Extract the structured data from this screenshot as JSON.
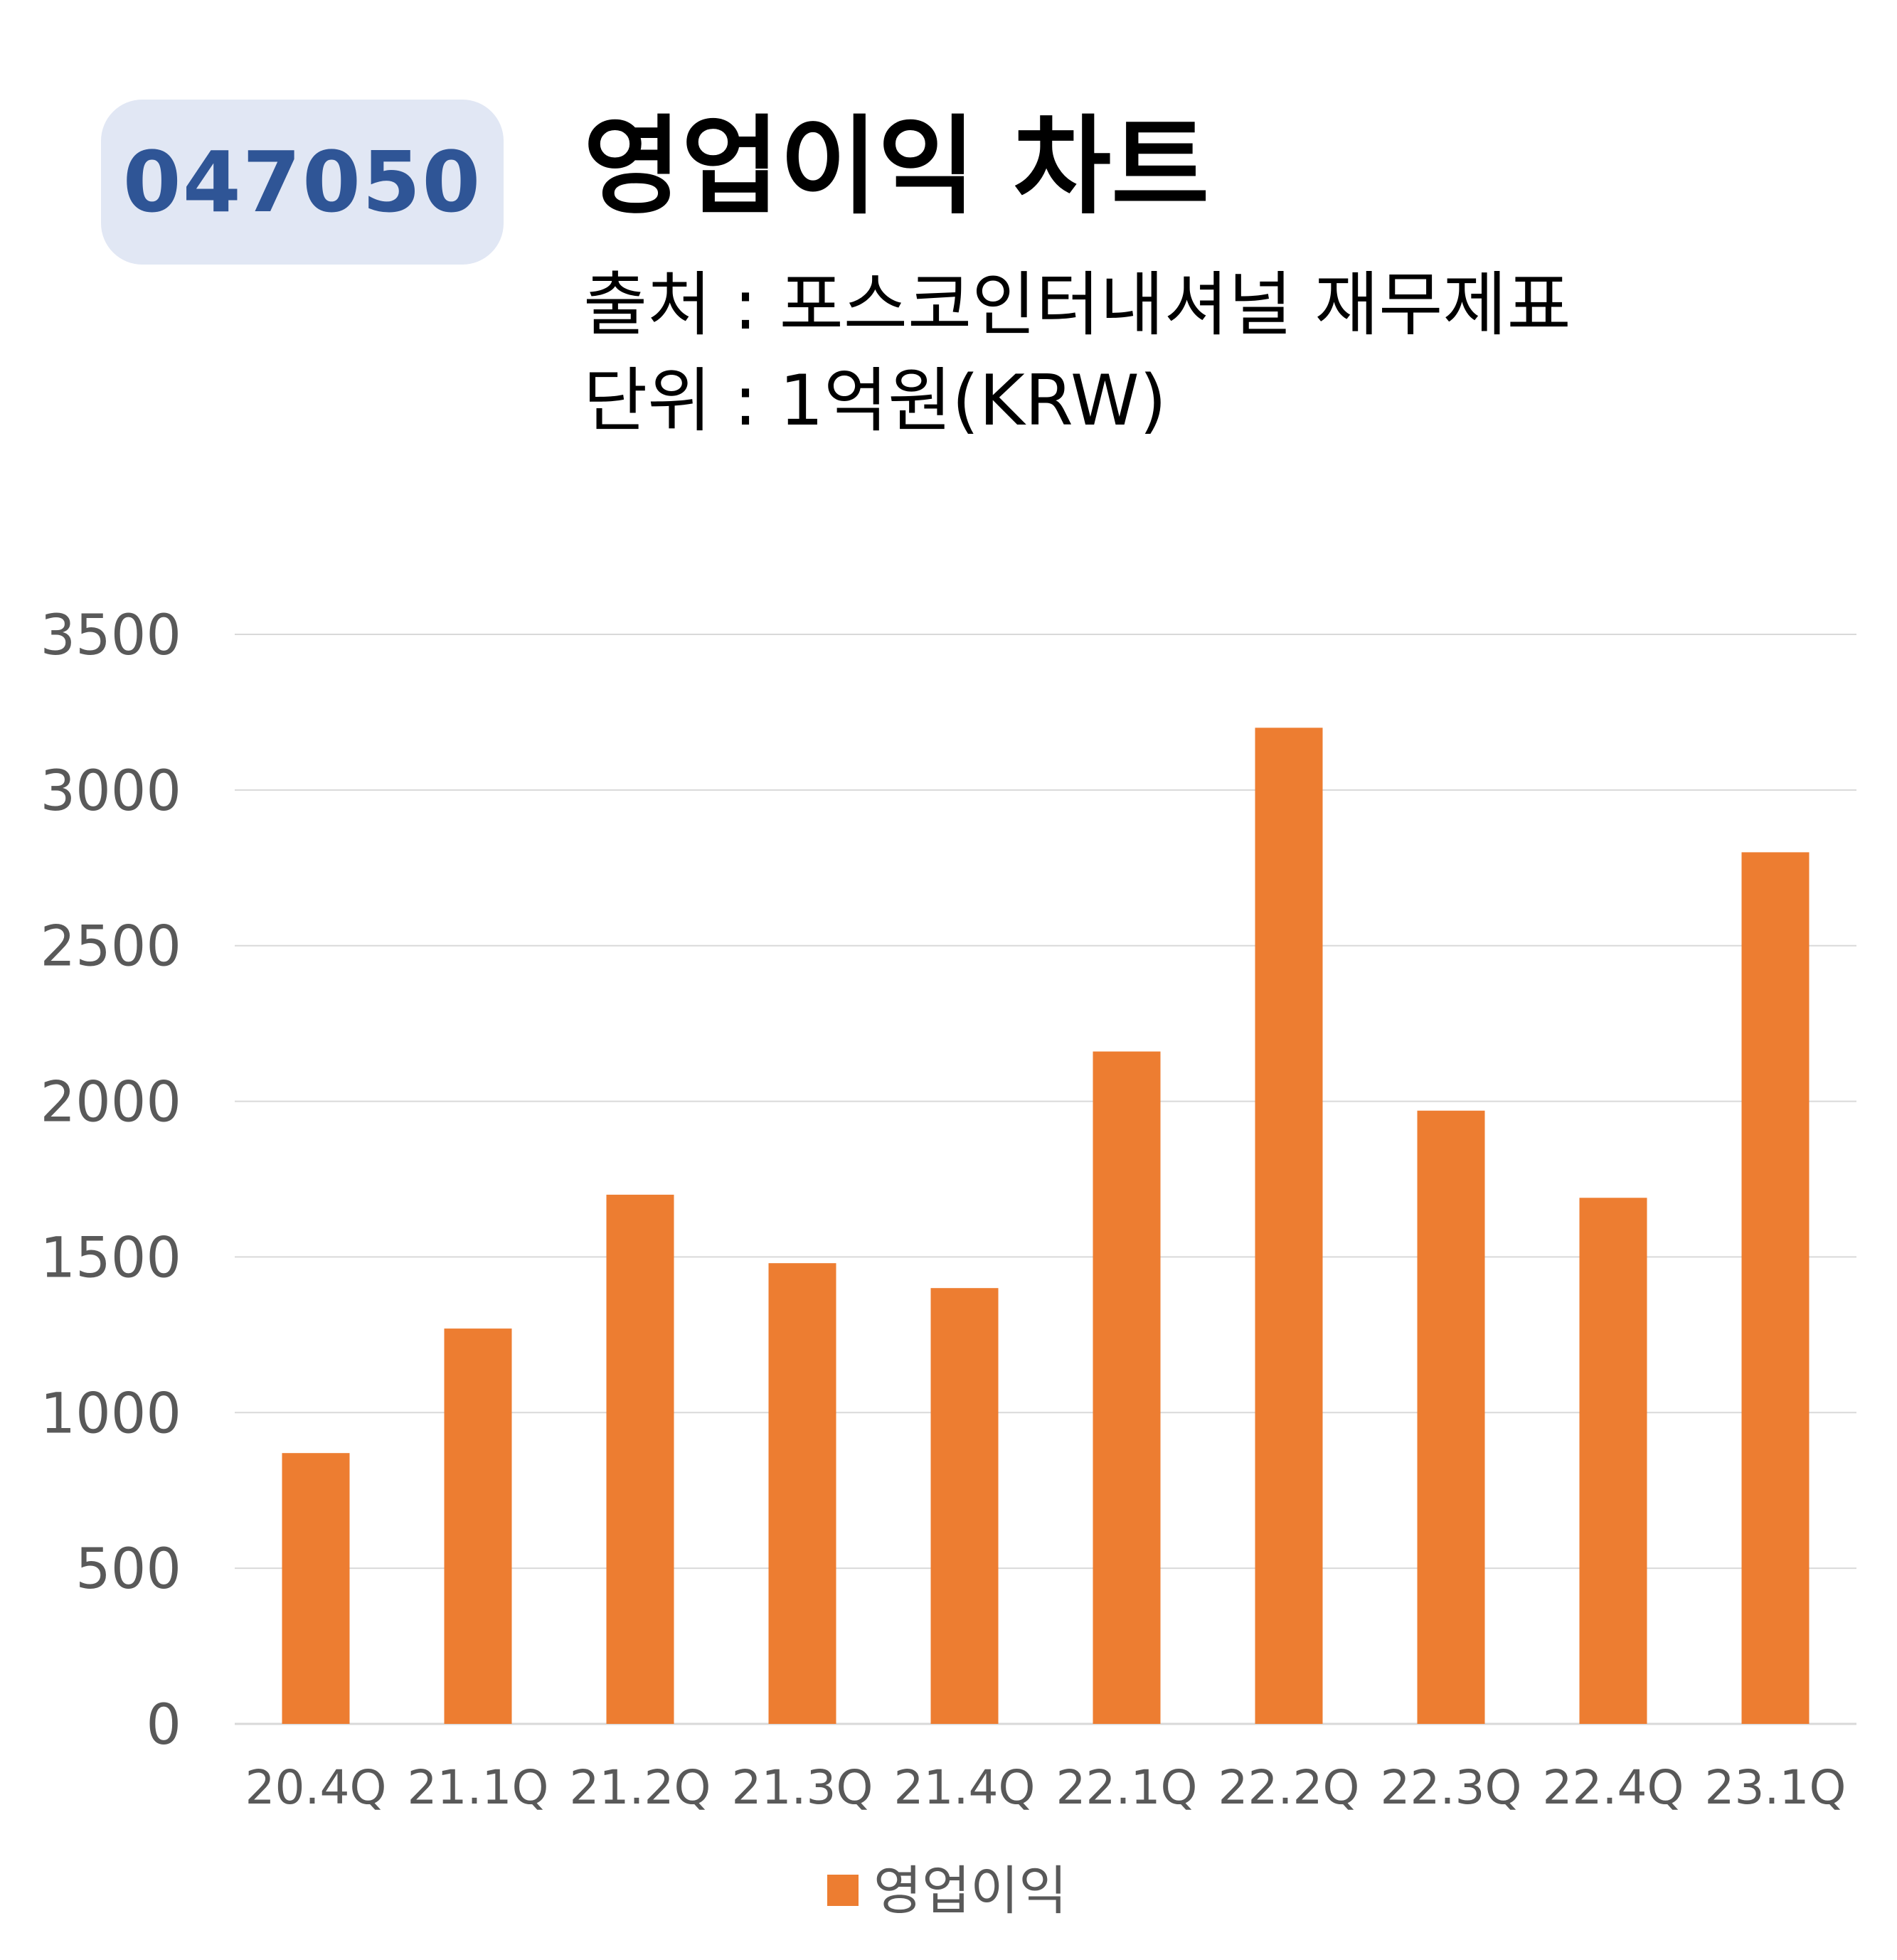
{
  "ticker": "047050",
  "title": "영업이익 차트",
  "source_text": "출처 : 포스코인터내셔널 재무제표",
  "unit_text": "단위 : 1억원(KRW)",
  "colors": {
    "bar": "#ed7d31",
    "badge_bg": "#e1e7f4",
    "badge_text": "#2f5596",
    "grid": "#d9d9d9",
    "tick_text": "#595959"
  },
  "chart_data": {
    "type": "bar",
    "categories": [
      "20.4Q",
      "21.1Q",
      "21.2Q",
      "21.3Q",
      "21.4Q",
      "22.1Q",
      "22.2Q",
      "22.3Q",
      "22.4Q",
      "23.1Q"
    ],
    "series": [
      {
        "name": "영업이익",
        "values": [
          870,
          1270,
          1700,
          1480,
          1400,
          2160,
          3200,
          1970,
          1690,
          2800
        ]
      }
    ],
    "y_ticks": [
      "0",
      "500",
      "1000",
      "1500",
      "2000",
      "2500",
      "3000",
      "3500"
    ],
    "ylim": [
      0,
      3500
    ],
    "grid": true,
    "legend_position": "bottom"
  }
}
